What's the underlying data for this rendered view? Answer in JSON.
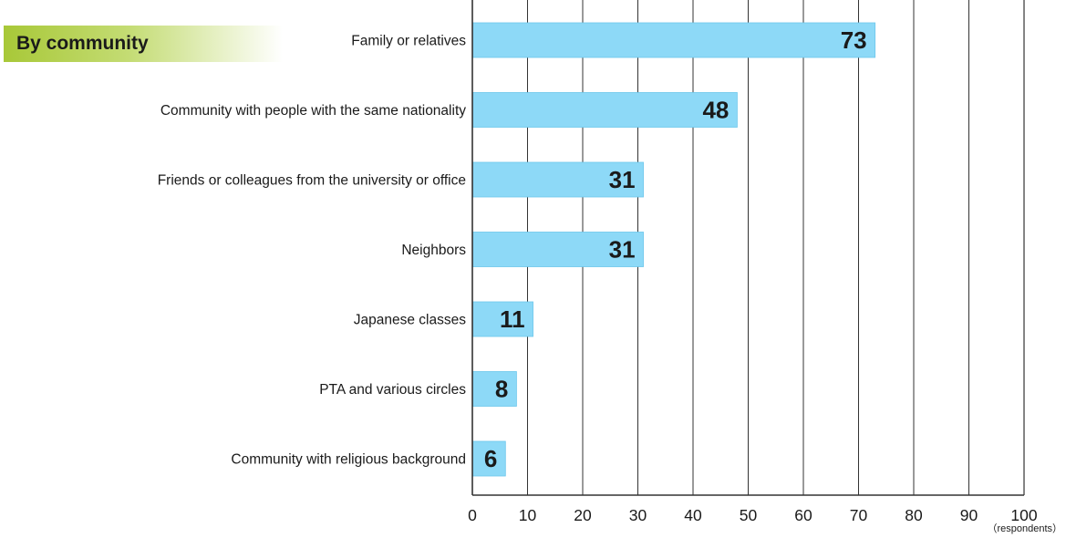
{
  "chart_data": {
    "type": "bar",
    "orientation": "horizontal",
    "title": "By community",
    "categories": [
      "Family or relatives",
      "Community with people with the same nationality",
      "Friends or colleagues from the university or office",
      "Neighbors",
      "Japanese classes",
      "PTA and various circles",
      "Community with religious background"
    ],
    "values": [
      73,
      48,
      31,
      31,
      11,
      8,
      6
    ],
    "xlim": [
      0,
      100
    ],
    "xticks": [
      0,
      10,
      20,
      30,
      40,
      50,
      60,
      70,
      80,
      90,
      100
    ],
    "xlabel": "（respondents）",
    "ylabel": "",
    "grid": true,
    "legend": "none",
    "colors": {
      "bar": "#8dd9f7",
      "bar_edge": "#6cc6ec",
      "grid": "#333333",
      "label": "#1a1a1a",
      "badge": "#a8c838"
    }
  }
}
